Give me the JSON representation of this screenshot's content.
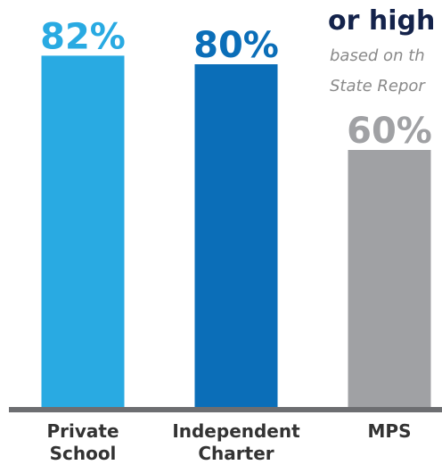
{
  "header": {
    "title_fragment": "or high",
    "subtitle_line1": "based on th",
    "subtitle_line2": "State Repor"
  },
  "colors": {
    "private": "#29aae2",
    "charter": "#0b6eb8",
    "mps": "#a0a1a4",
    "baseline": "#6d6e71",
    "heading": "#14234b",
    "subtitle": "#8a8a8a",
    "category_label": "#333333"
  },
  "chart_data": {
    "type": "bar",
    "categories": [
      "Private School",
      "Independent Charter",
      "MPS"
    ],
    "category_lines": [
      [
        "Private",
        "School"
      ],
      [
        "Independent",
        "Charter"
      ],
      [
        "MPS"
      ]
    ],
    "values": [
      82,
      80,
      60
    ],
    "value_labels": [
      "82%",
      "80%",
      "60%"
    ],
    "ylim": [
      0,
      100
    ],
    "grid": false,
    "legend": "none"
  }
}
